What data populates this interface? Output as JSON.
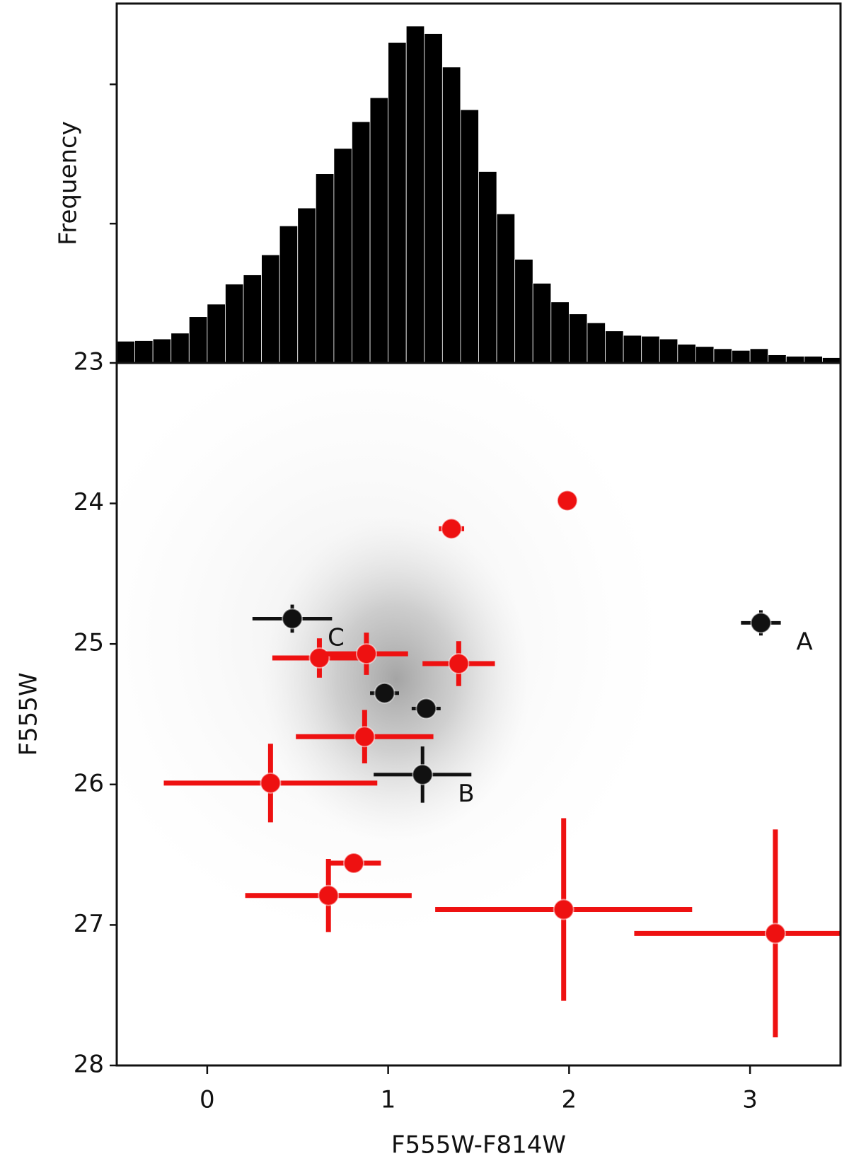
{
  "chart_data": [
    {
      "type": "histogram",
      "ylabel": "Frequency",
      "color": "#000000",
      "edge_color": "#ffffff",
      "xlim": [
        -0.5,
        3.5
      ],
      "ylim": [
        0,
        1290
      ],
      "yticks": [
        500,
        1000
      ],
      "bins": [
        -0.5,
        -0.4,
        -0.3,
        -0.2,
        -0.1,
        0,
        0.1,
        0.2,
        0.3,
        0.4,
        0.5,
        0.6,
        0.7,
        0.8,
        0.9,
        1.0,
        1.1,
        1.2,
        1.3,
        1.4,
        1.5,
        1.6,
        1.7,
        1.8,
        1.9,
        2.0,
        2.1,
        2.2,
        2.3,
        2.4,
        2.5,
        2.6,
        2.7,
        2.8,
        2.9,
        3.0,
        3.1,
        3.2,
        3.3,
        3.4,
        3.5
      ],
      "counts": [
        78,
        80,
        86,
        107,
        166,
        211,
        283,
        316,
        388,
        492,
        556,
        679,
        770,
        866,
        952,
        1150,
        1209,
        1182,
        1062,
        909,
        687,
        535,
        372,
        286,
        219,
        176,
        144,
        115,
        99,
        96,
        86,
        67,
        59,
        51,
        45,
        51,
        29,
        24,
        24,
        19
      ]
    },
    {
      "type": "scatter",
      "xlabel": "F555W-F814W",
      "ylabel": "F555W",
      "xlim": [
        -0.5,
        3.5
      ],
      "ylim": [
        23,
        28
      ],
      "y_inverted": true,
      "xticks": [
        0,
        1,
        2,
        3
      ],
      "yticks": [
        23,
        24,
        25,
        26,
        27,
        28
      ],
      "series": [
        {
          "color": "#ee1111",
          "x": [
            1.99,
            1.35,
            0.62,
            0.88,
            1.39,
            0.87,
            0.35,
            0.81,
            0.67,
            1.97,
            3.14
          ],
          "y": [
            23.98,
            24.18,
            25.1,
            25.07,
            25.14,
            25.66,
            25.99,
            26.56,
            26.79,
            26.89,
            27.06
          ],
          "xerr": [
            0.05,
            0.07,
            0.26,
            0.23,
            0.2,
            0.38,
            0.59,
            0.15,
            0.46,
            0.71,
            0.78
          ],
          "yerr": [
            0.03,
            0.03,
            0.14,
            0.15,
            0.16,
            0.19,
            0.28,
            0.06,
            0.26,
            0.65,
            0.74
          ]
        },
        {
          "color": "#111111",
          "x": [
            0.47,
            0.98,
            1.21,
            1.19,
            3.06
          ],
          "y": [
            24.82,
            25.35,
            25.46,
            25.93,
            24.85
          ],
          "xerr": [
            0.22,
            0.08,
            0.08,
            0.27,
            0.11
          ],
          "yerr": [
            0.1,
            0.06,
            0.06,
            0.2,
            0.09
          ],
          "labels": [
            "C",
            null,
            null,
            "B",
            "A"
          ]
        }
      ]
    }
  ]
}
